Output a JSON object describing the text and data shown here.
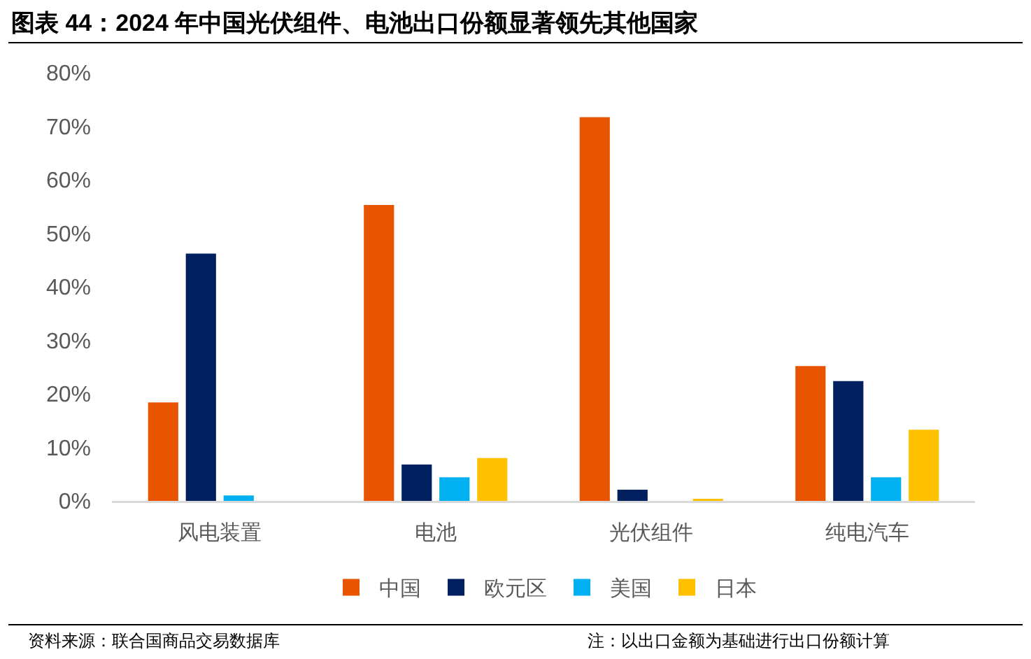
{
  "chart_data": {
    "type": "bar",
    "title": "图表 44：2024 年中国光伏组件、电池出口份额显著领先其他国家",
    "categories": [
      "风电装置",
      "电池",
      "光伏组件",
      "纯电汽车"
    ],
    "series": [
      {
        "name": "中国",
        "color": "#e85400",
        "values": [
          18.4,
          55.3,
          71.7,
          25.2
        ]
      },
      {
        "name": "欧元区",
        "color": "#002060",
        "values": [
          46.2,
          6.8,
          2.1,
          22.4
        ]
      },
      {
        "name": "美国",
        "color": "#00b0f0",
        "values": [
          1.0,
          4.4,
          null,
          4.4
        ]
      },
      {
        "name": "日本",
        "color": "#ffc000",
        "values": [
          null,
          8.0,
          0.4,
          13.3
        ]
      }
    ],
    "ylim": [
      0,
      80
    ],
    "yticks": [
      {
        "value": 0,
        "label": "0%"
      },
      {
        "value": 10,
        "label": "10%"
      },
      {
        "value": 20,
        "label": "20%"
      },
      {
        "value": 30,
        "label": "30%"
      },
      {
        "value": 40,
        "label": "40%"
      },
      {
        "value": 50,
        "label": "50%"
      },
      {
        "value": 60,
        "label": "60%"
      },
      {
        "value": 70,
        "label": "70%"
      },
      {
        "value": 80,
        "label": "80%"
      }
    ],
    "legend": "bottom",
    "annotations": [
      "资料来源：联合国商品交易数据库",
      "注：以出口金额为基础进行出口份额计算"
    ]
  }
}
